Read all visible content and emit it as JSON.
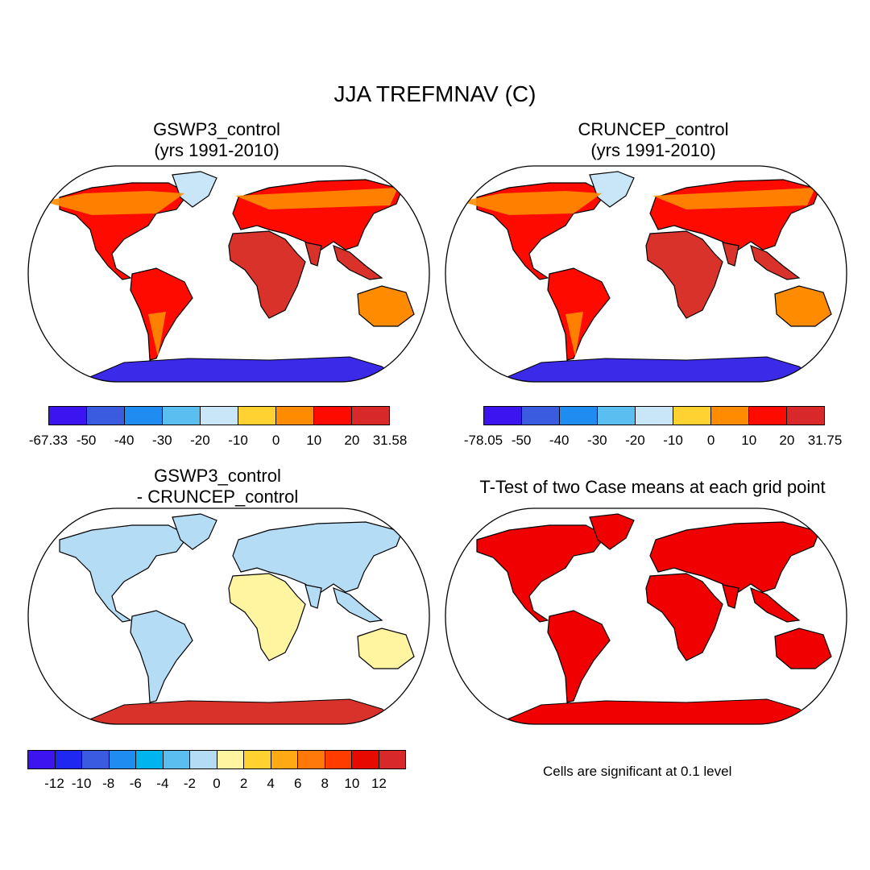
{
  "title": "JJA TREFMNAV (C)",
  "panels": [
    {
      "id": "p1",
      "title_lines": [
        "GSWP3_control",
        "(yrs 1991-2010)"
      ],
      "style": "abs",
      "antarctica": "#3b2be8"
    },
    {
      "id": "p2",
      "title_lines": [
        "CRUNCEP_control",
        "(yrs 1991-2010)"
      ],
      "style": "abs",
      "antarctica": "#3b2be8"
    },
    {
      "id": "p3",
      "title_lines": [
        "GSWP3_control",
        "- CRUNCEP_control"
      ],
      "style": "diff",
      "antarctica": "#d8322a"
    },
    {
      "id": "p4",
      "title_lines": [
        "T-Test of two Case means at each grid point"
      ],
      "style": "sig",
      "antarctica": "#f00000"
    }
  ],
  "colorbars": [
    {
      "id": "cb1",
      "colors": [
        "#3c14f0",
        "#3a5ae0",
        "#1e8cf0",
        "#5abef0",
        "#c8e6f8",
        "#ffd232",
        "#ff8c00",
        "#ff0a00",
        "#d8282a"
      ],
      "labels": [
        "-67.33",
        "-50",
        "-40",
        "-30",
        "-20",
        "-10",
        "0",
        "10",
        "20",
        "31.58"
      ]
    },
    {
      "id": "cb2",
      "colors": [
        "#3c14f0",
        "#3a5ae0",
        "#1e8cf0",
        "#5abef0",
        "#c8e6f8",
        "#ffd232",
        "#ff8c00",
        "#ff0a00",
        "#d8282a"
      ],
      "labels": [
        "-78.05",
        "-50",
        "-40",
        "-30",
        "-20",
        "-10",
        "0",
        "10",
        "20",
        "31.75"
      ]
    },
    {
      "id": "cb3",
      "colors": [
        "#3c14f0",
        "#1e28f0",
        "#3a5ae0",
        "#1e8cf0",
        "#00b4f0",
        "#5abef0",
        "#b4dcf4",
        "#fff5a0",
        "#ffd232",
        "#ffaa14",
        "#ff780a",
        "#ff3c00",
        "#e60a00",
        "#d8282a"
      ],
      "labels": [
        "-12",
        "-10",
        "-8",
        "-6",
        "-4",
        "-2",
        "0",
        "2",
        "4",
        "6",
        "8",
        "10",
        "12"
      ]
    }
  ],
  "note": "Cells are significant at 0.1 level",
  "colors": {
    "abs_land": "#ff0a00",
    "abs_tropics": "#d8322a",
    "abs_cool": "#ff8c00",
    "abs_greenland": "#c8e6f8",
    "diff_land": "#b4dcf4",
    "diff_warm": "#fff5a0",
    "sig_land": "#f00000",
    "coast": "#000000"
  }
}
